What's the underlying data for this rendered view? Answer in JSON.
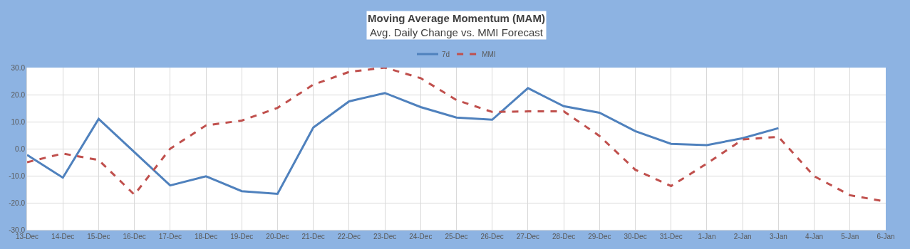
{
  "chart_data": {
    "type": "line",
    "title": "Moving Average Momentum (MAM)",
    "subtitle": "Avg. Daily Change vs. MMI Forecast",
    "categories": [
      "13-Dec",
      "14-Dec",
      "15-Dec",
      "16-Dec",
      "17-Dec",
      "18-Dec",
      "19-Dec",
      "20-Dec",
      "21-Dec",
      "22-Dec",
      "23-Dec",
      "24-Dec",
      "25-Dec",
      "26-Dec",
      "27-Dec",
      "28-Dec",
      "29-Dec",
      "30-Dec",
      "31-Dec",
      "1-Jan",
      "2-Jan",
      "3-Jan",
      "4-Jan",
      "5-Jan",
      "6-Jan"
    ],
    "series": [
      {
        "name": "7d",
        "color": "#4f81bd",
        "line_style": "solid",
        "values": [
          -2.3,
          -10.7,
          11.0,
          -1.3,
          -13.6,
          -10.2,
          -15.7,
          -16.7,
          7.8,
          17.5,
          20.6,
          15.4,
          11.5,
          10.7,
          22.4,
          15.7,
          13.3,
          6.5,
          1.8,
          1.3,
          3.9,
          7.6,
          null,
          null,
          null
        ]
      },
      {
        "name": "MMI",
        "color": "#c0504d",
        "line_style": "dashed",
        "values": [
          -5.0,
          -1.8,
          -4.2,
          -17.0,
          0.0,
          8.6,
          10.4,
          15.1,
          23.7,
          28.4,
          30.0,
          26.1,
          18.0,
          13.6,
          13.8,
          13.8,
          4.7,
          -7.8,
          -13.8,
          -5.5,
          3.4,
          4.4,
          -10.2,
          -17.2,
          -19.6
        ]
      }
    ],
    "ylim": [
      -30,
      30
    ],
    "yticks": [
      {
        "value": -30,
        "label": "-30.0"
      },
      {
        "value": -20,
        "label": "-20.0"
      },
      {
        "value": -10,
        "label": "-10.0"
      },
      {
        "value": 0,
        "label": "0.0"
      },
      {
        "value": 10,
        "label": "10.0"
      },
      {
        "value": 20,
        "label": "20.0"
      },
      {
        "value": 30,
        "label": "30.0"
      }
    ],
    "grid": true,
    "legend": "top",
    "marker": "none"
  }
}
